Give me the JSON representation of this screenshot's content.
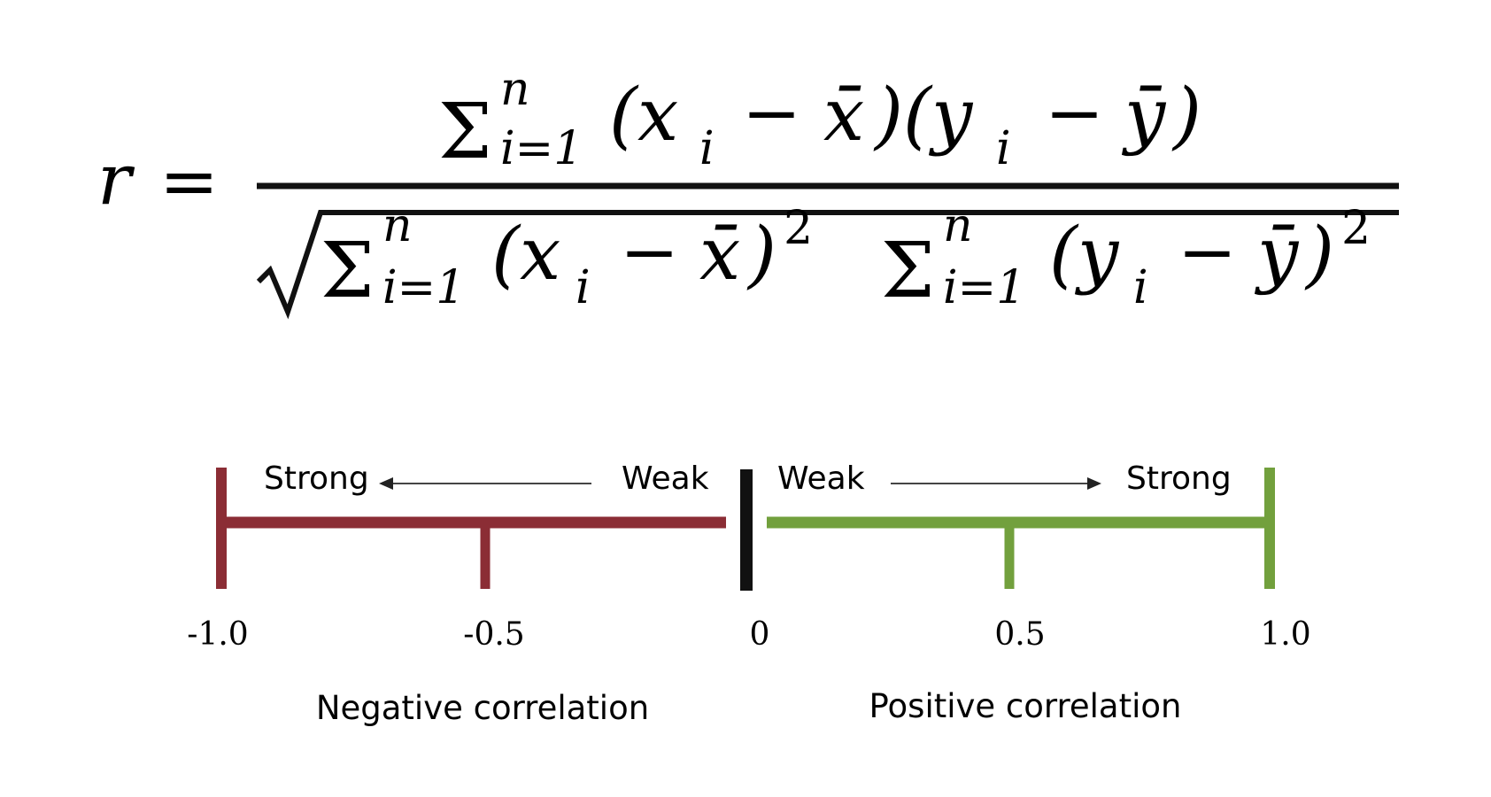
{
  "formula": {
    "lhs": "r",
    "equals": "=",
    "sum": "Σ",
    "upper": "n",
    "lower": "i=1",
    "num_x": "(x",
    "num_sub_i": "i",
    "minus": "−",
    "xbar": "x̄",
    "close_open": ")(y",
    "ybar": "ȳ",
    "close": ")",
    "den_x": "(x",
    "den_close_sq": ")",
    "sq": "2",
    "den_y": "(y"
  },
  "scale": {
    "neg_strong": "Strong",
    "neg_weak": "Weak",
    "pos_weak": "Weak",
    "pos_strong": "Strong",
    "ticks": [
      "-1.0",
      "-0.5",
      "0",
      "0.5",
      "1.0"
    ],
    "neg_caption": "Negative correlation",
    "pos_caption": "Positive correlation",
    "colors": {
      "negative": "#8b2d35",
      "positive": "#72a03d",
      "zero": "#111111"
    }
  }
}
